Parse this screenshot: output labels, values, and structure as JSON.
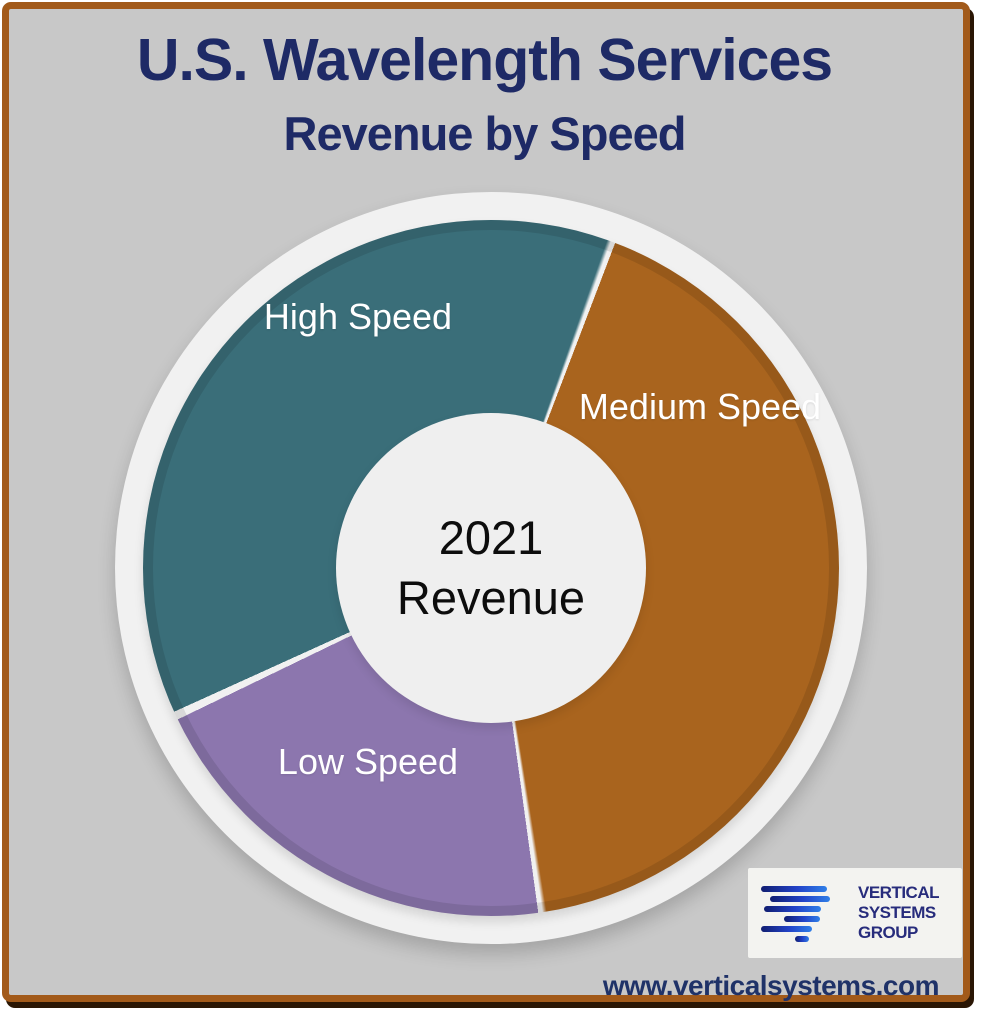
{
  "frame": {
    "background_color": "#C8C8C8",
    "border_color": "#A25A1A"
  },
  "title": "U.S. Wavelength Services",
  "subtitle": "Revenue by Speed",
  "chart_data": {
    "type": "pie",
    "variant": "donut",
    "title": "U.S. Wavelength Services",
    "subtitle": "Revenue by Speed",
    "center_line1": "2021",
    "center_line2": "Revenue",
    "ring_color": "#F1F1F1",
    "hole_color": "#EFEFEF",
    "values_labeled": false,
    "legend_position": "labels-on-slices",
    "segments": [
      {
        "label": "High Speed",
        "color": "#3A6E79",
        "start_deg": 244.9,
        "end_deg": 380.2,
        "share_pct_est": 37.6
      },
      {
        "label": "Medium Speed",
        "color": "#A9641E",
        "start_deg": 20.2,
        "end_deg": 171.5,
        "share_pct_est": 42.0
      },
      {
        "label": "Low Speed",
        "color": "#8C76AE",
        "start_deg": 171.5,
        "end_deg": 244.9,
        "share_pct_est": 20.4
      }
    ]
  },
  "logo": {
    "lines": [
      "VERTICAL",
      "SYSTEMS",
      "GROUP"
    ],
    "text_color": "#272C7C"
  },
  "website": "www.verticalsystems.com"
}
